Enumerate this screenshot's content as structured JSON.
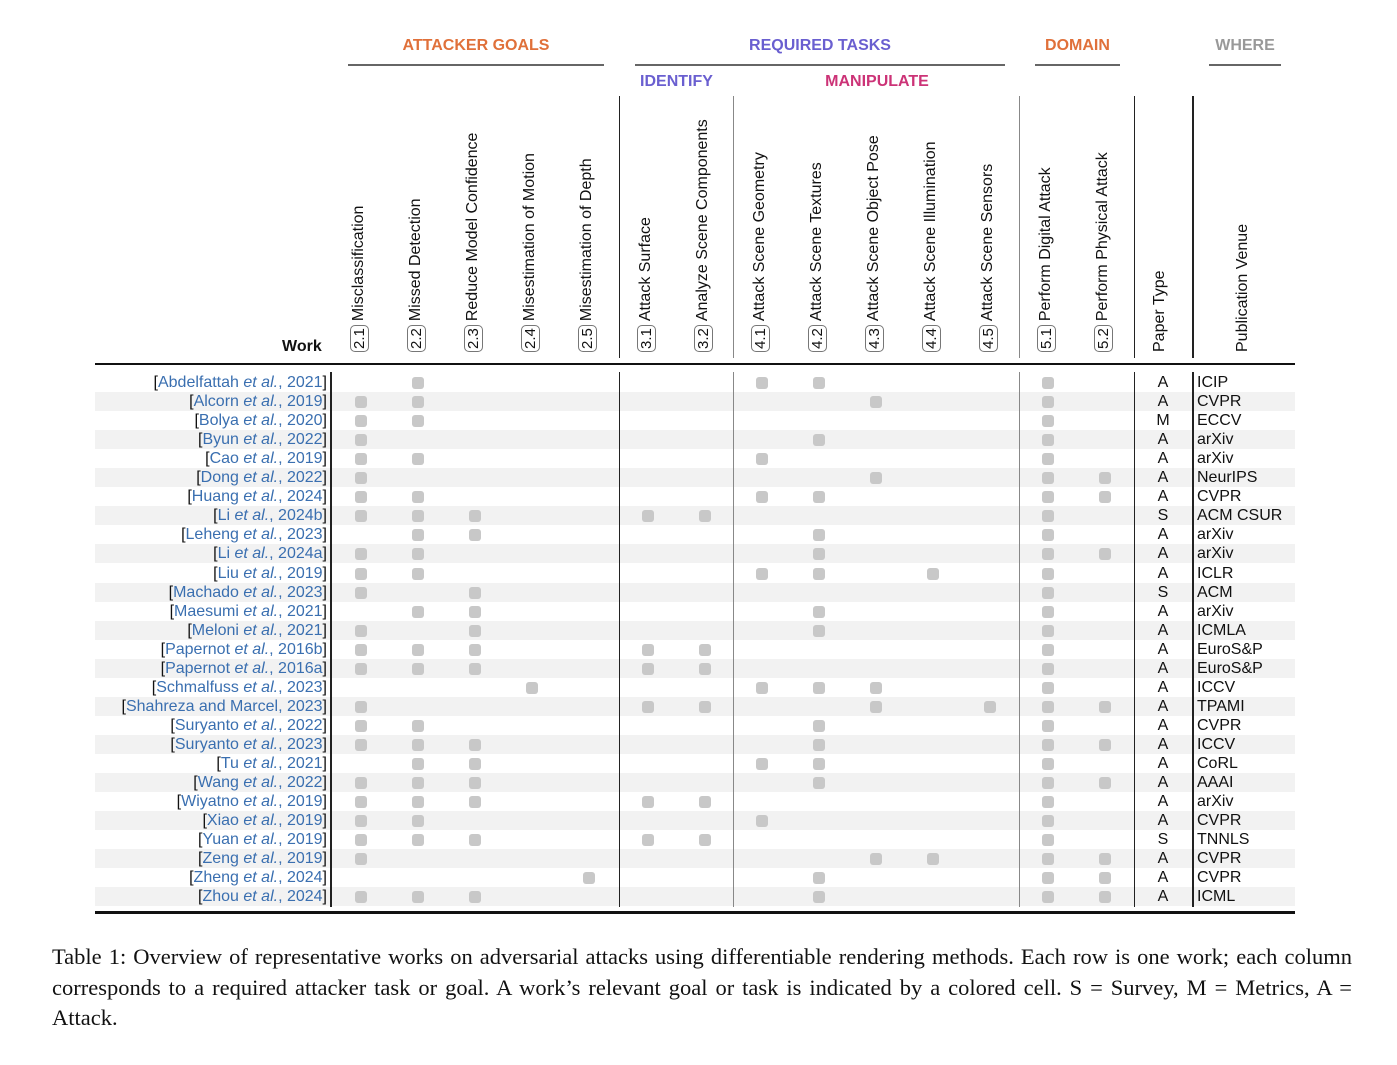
{
  "groups": [
    {
      "label": "ATTACKER GOALS",
      "color": "#e0703a"
    },
    {
      "label": "REQUIRED TASKS",
      "color": "#6a5fd0"
    },
    {
      "label": "DOMAIN",
      "color": "#e0703a"
    },
    {
      "label": "WHERE",
      "color": "#999999"
    }
  ],
  "subgroups": [
    {
      "label": "IDENTIFY",
      "color": "#6a5fd0"
    },
    {
      "label": "MANIPULATE",
      "color": "#cc3377"
    }
  ],
  "work_header": "Work",
  "columns": [
    {
      "id": "2.1",
      "label": "Misclassification"
    },
    {
      "id": "2.2",
      "label": "Missed Detection"
    },
    {
      "id": "2.3",
      "label": "Reduce Model Confidence"
    },
    {
      "id": "2.4",
      "label": "Misestimation of Motion"
    },
    {
      "id": "2.5",
      "label": "Misestimation of Depth"
    },
    {
      "id": "3.1",
      "label": "Attack Surface"
    },
    {
      "id": "3.2",
      "label": "Analyze Scene Components"
    },
    {
      "id": "4.1",
      "label": "Attack Scene Geometry"
    },
    {
      "id": "4.2",
      "label": "Attack Scene Textures"
    },
    {
      "id": "4.3",
      "label": "Attack Scene Object Pose"
    },
    {
      "id": "4.4",
      "label": "Attack Scene Illumination"
    },
    {
      "id": "4.5",
      "label": "Attack Scene Sensors"
    },
    {
      "id": "5.1",
      "label": "Perform Digital Attack"
    },
    {
      "id": "5.2",
      "label": "Perform Physical Attack"
    }
  ],
  "paper_type_header": "Paper Type",
  "venue_header": "Publication Venue",
  "cell_color": "#c8c8c8",
  "rows": [
    {
      "author": "Abdelfattah",
      "etal": true,
      "year": "2021",
      "marks": [
        "2.2",
        "4.1",
        "4.2",
        "5.1"
      ],
      "type": "A",
      "venue": "ICIP"
    },
    {
      "author": "Alcorn",
      "etal": true,
      "year": "2019",
      "marks": [
        "2.1",
        "2.2",
        "4.3",
        "5.1"
      ],
      "type": "A",
      "venue": "CVPR"
    },
    {
      "author": "Bolya",
      "etal": true,
      "year": "2020",
      "marks": [
        "2.1",
        "2.2",
        "5.1"
      ],
      "type": "M",
      "venue": "ECCV"
    },
    {
      "author": "Byun",
      "etal": true,
      "year": "2022",
      "marks": [
        "2.1",
        "4.2",
        "5.1"
      ],
      "type": "A",
      "venue": "arXiv"
    },
    {
      "author": "Cao",
      "etal": true,
      "year": "2019",
      "marks": [
        "2.1",
        "2.2",
        "4.1",
        "5.1"
      ],
      "type": "A",
      "venue": "arXiv"
    },
    {
      "author": "Dong",
      "etal": true,
      "year": "2022",
      "marks": [
        "2.1",
        "4.3",
        "5.1",
        "5.2"
      ],
      "type": "A",
      "venue": "NeurIPS"
    },
    {
      "author": "Huang",
      "etal": true,
      "year": "2024",
      "marks": [
        "2.1",
        "2.2",
        "4.1",
        "4.2",
        "5.1",
        "5.2"
      ],
      "type": "A",
      "venue": "CVPR"
    },
    {
      "author": "Li",
      "etal": true,
      "year": "2024b",
      "marks": [
        "2.1",
        "2.2",
        "2.3",
        "3.1",
        "3.2",
        "5.1"
      ],
      "type": "S",
      "venue": "ACM CSUR"
    },
    {
      "author": "Leheng",
      "etal": true,
      "year": "2023",
      "marks": [
        "2.2",
        "2.3",
        "4.2",
        "5.1"
      ],
      "type": "A",
      "venue": "arXiv"
    },
    {
      "author": "Li",
      "etal": true,
      "year": "2024a",
      "marks": [
        "2.1",
        "2.2",
        "4.2",
        "5.1",
        "5.2"
      ],
      "type": "A",
      "venue": "arXiv"
    },
    {
      "author": "Liu",
      "etal": true,
      "year": "2019",
      "marks": [
        "2.1",
        "2.2",
        "4.1",
        "4.2",
        "4.4",
        "5.1"
      ],
      "type": "A",
      "venue": "ICLR"
    },
    {
      "author": "Machado",
      "etal": true,
      "year": "2023",
      "marks": [
        "2.1",
        "2.3",
        "5.1"
      ],
      "type": "S",
      "venue": "ACM"
    },
    {
      "author": "Maesumi",
      "etal": true,
      "year": "2021",
      "marks": [
        "2.2",
        "2.3",
        "4.2",
        "5.1"
      ],
      "type": "A",
      "venue": "arXiv"
    },
    {
      "author": "Meloni",
      "etal": true,
      "year": "2021",
      "marks": [
        "2.1",
        "2.3",
        "4.2",
        "5.1"
      ],
      "type": "A",
      "venue": "ICMLA"
    },
    {
      "author": "Papernot",
      "etal": true,
      "year": "2016b",
      "marks": [
        "2.1",
        "2.2",
        "2.3",
        "3.1",
        "3.2",
        "5.1"
      ],
      "type": "A",
      "venue": "EuroS&P"
    },
    {
      "author": "Papernot",
      "etal": true,
      "year": "2016a",
      "marks": [
        "2.1",
        "2.2",
        "2.3",
        "3.1",
        "3.2",
        "5.1"
      ],
      "type": "A",
      "venue": "EuroS&P"
    },
    {
      "author": "Schmalfuss",
      "etal": true,
      "year": "2023",
      "marks": [
        "2.4",
        "4.1",
        "4.2",
        "4.3",
        "5.1"
      ],
      "type": "A",
      "venue": "ICCV"
    },
    {
      "author": "Shahreza and Marcel",
      "etal": false,
      "year": "2023",
      "marks": [
        "2.1",
        "3.1",
        "3.2",
        "4.3",
        "4.5",
        "5.1",
        "5.2"
      ],
      "type": "A",
      "venue": "TPAMI"
    },
    {
      "author": "Suryanto",
      "etal": true,
      "year": "2022",
      "marks": [
        "2.1",
        "2.2",
        "4.2",
        "5.1"
      ],
      "type": "A",
      "venue": "CVPR"
    },
    {
      "author": "Suryanto",
      "etal": true,
      "year": "2023",
      "marks": [
        "2.1",
        "2.2",
        "2.3",
        "4.2",
        "5.1",
        "5.2"
      ],
      "type": "A",
      "venue": "ICCV"
    },
    {
      "author": "Tu",
      "etal": true,
      "year": "2021",
      "marks": [
        "2.2",
        "2.3",
        "4.1",
        "4.2",
        "5.1"
      ],
      "type": "A",
      "venue": "CoRL"
    },
    {
      "author": "Wang",
      "etal": true,
      "year": "2022",
      "marks": [
        "2.1",
        "2.2",
        "2.3",
        "4.2",
        "5.1",
        "5.2"
      ],
      "type": "A",
      "venue": "AAAI"
    },
    {
      "author": "Wiyatno",
      "etal": true,
      "year": "2019",
      "marks": [
        "2.1",
        "2.2",
        "2.3",
        "3.1",
        "3.2",
        "5.1"
      ],
      "type": "A",
      "venue": "arXiv"
    },
    {
      "author": "Xiao",
      "etal": true,
      "year": "2019",
      "marks": [
        "2.1",
        "2.2",
        "4.1",
        "5.1"
      ],
      "type": "A",
      "venue": "CVPR"
    },
    {
      "author": "Yuan",
      "etal": true,
      "year": "2019",
      "marks": [
        "2.1",
        "2.2",
        "2.3",
        "3.1",
        "3.2",
        "5.1"
      ],
      "type": "S",
      "venue": "TNNLS"
    },
    {
      "author": "Zeng",
      "etal": true,
      "year": "2019",
      "marks": [
        "2.1",
        "4.3",
        "4.4",
        "5.1",
        "5.2"
      ],
      "type": "A",
      "venue": "CVPR"
    },
    {
      "author": "Zheng",
      "etal": true,
      "year": "2024",
      "marks": [
        "2.5",
        "4.2",
        "5.1",
        "5.2"
      ],
      "type": "A",
      "venue": "CVPR"
    },
    {
      "author": "Zhou",
      "etal": true,
      "year": "2024",
      "marks": [
        "2.1",
        "2.2",
        "2.3",
        "4.2",
        "5.1",
        "5.2"
      ],
      "type": "A",
      "venue": "ICML"
    }
  ],
  "etal_text": "et al.",
  "caption": "Table 1: Overview of representative works on adversarial attacks using differentiable rendering methods. Each row is one work; each column corresponds to a required attacker task or goal. A work’s relevant goal or task is indicated by a colored cell. S = Survey, M = Metrics, A = Attack."
}
